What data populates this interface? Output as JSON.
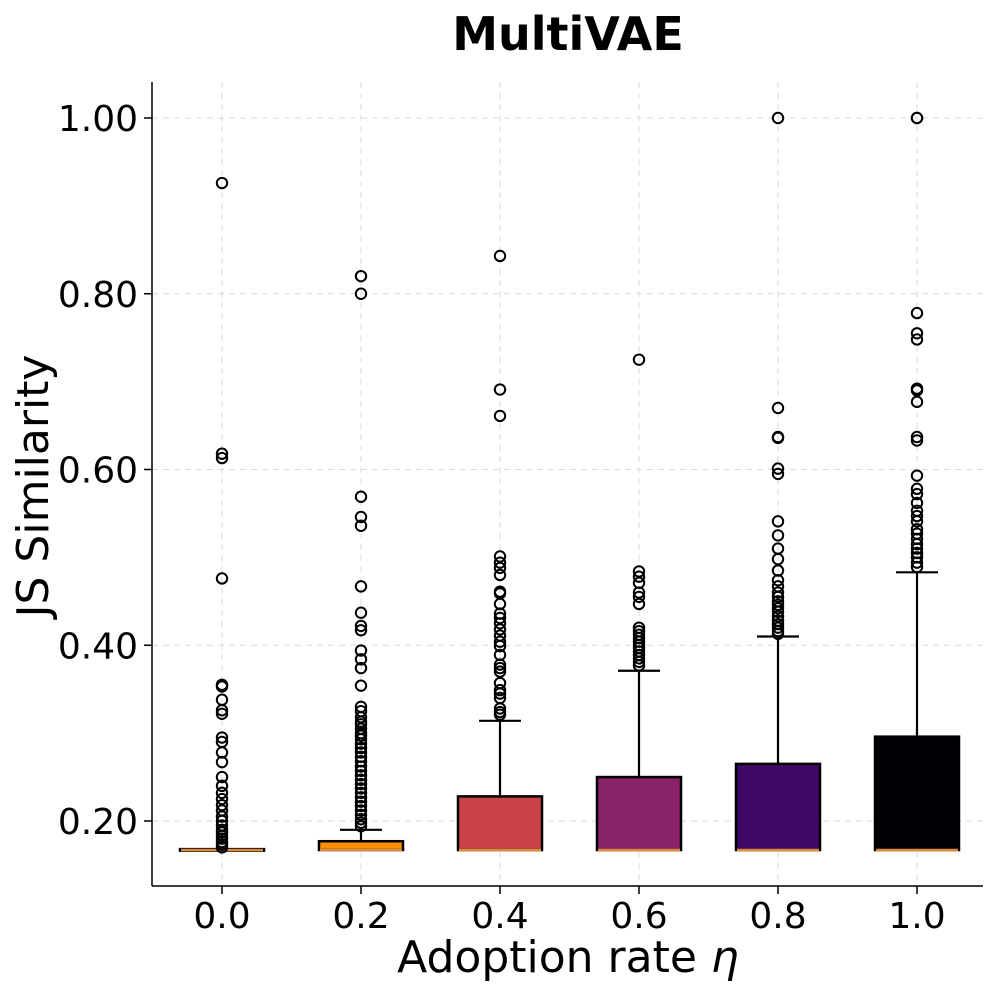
{
  "chart_data": {
    "type": "box",
    "title": "MultiVAE",
    "xlabel": "Adoption rate",
    "xlabel_symbol": "η",
    "ylabel": "JS Similarity",
    "ylim": [
      0.13,
      1.04
    ],
    "yticks": [
      "0.20",
      "0.40",
      "0.60",
      "0.80",
      "1.00"
    ],
    "ytick_values": [
      0.2,
      0.4,
      0.6,
      0.8,
      1.0
    ],
    "grid": true,
    "categories": [
      "0.0",
      "0.2",
      "0.4",
      "0.6",
      "0.8",
      "1.0"
    ],
    "boxes": [
      {
        "label": "0.0",
        "color": "#000004",
        "q1": 0.167,
        "median": 0.167,
        "q3": 0.168,
        "whisker_low": 0.167,
        "whisker_high": 0.168,
        "fliers": [
          0.926,
          0.618,
          0.613,
          0.476,
          0.355,
          0.353,
          0.338,
          0.326,
          0.322,
          0.295,
          0.29,
          0.278,
          0.267,
          0.25,
          0.24,
          0.232,
          0.225,
          0.218,
          0.212,
          0.205,
          0.2,
          0.195,
          0.19,
          0.187,
          0.183,
          0.18,
          0.176,
          0.173,
          0.17
        ]
      },
      {
        "label": "0.2",
        "color": "#f98e09",
        "q1": 0.167,
        "median": 0.167,
        "q3": 0.177,
        "whisker_low": 0.167,
        "whisker_high": 0.19,
        "fliers": [
          0.82,
          0.8,
          0.569,
          0.546,
          0.536,
          0.467,
          0.437,
          0.422,
          0.417,
          0.394,
          0.384,
          0.374,
          0.354,
          0.33,
          0.325,
          0.318,
          0.313,
          0.31,
          0.305,
          0.3,
          0.297,
          0.293,
          0.288,
          0.283,
          0.278,
          0.273,
          0.268,
          0.262,
          0.257,
          0.252,
          0.247,
          0.242,
          0.237,
          0.232,
          0.227,
          0.222,
          0.217,
          0.212,
          0.207,
          0.202,
          0.198,
          0.194
        ]
      },
      {
        "label": "0.4",
        "color": "#cb4149",
        "q1": 0.167,
        "median": 0.167,
        "q3": 0.228,
        "whisker_low": 0.167,
        "whisker_high": 0.314,
        "fliers": [
          0.843,
          0.691,
          0.661,
          0.501,
          0.494,
          0.488,
          0.48,
          0.461,
          0.459,
          0.447,
          0.436,
          0.431,
          0.425,
          0.418,
          0.411,
          0.404,
          0.399,
          0.389,
          0.378,
          0.374,
          0.37,
          0.357,
          0.349,
          0.345,
          0.34,
          0.328,
          0.324,
          0.321
        ]
      },
      {
        "label": "0.6",
        "color": "#8a226a",
        "q1": 0.167,
        "median": 0.167,
        "q3": 0.25,
        "whisker_low": 0.167,
        "whisker_high": 0.371,
        "fliers": [
          0.725,
          0.484,
          0.478,
          0.471,
          0.46,
          0.455,
          0.447,
          0.42,
          0.416,
          0.412,
          0.408,
          0.404,
          0.4,
          0.397,
          0.393,
          0.389,
          0.385,
          0.381,
          0.377
        ]
      },
      {
        "label": "0.8",
        "color": "#3e0966",
        "q1": 0.167,
        "median": 0.167,
        "q3": 0.265,
        "whisker_low": 0.167,
        "whisker_high": 0.41,
        "fliers": [
          1.0,
          0.67,
          0.637,
          0.636,
          0.601,
          0.595,
          0.541,
          0.525,
          0.51,
          0.498,
          0.485,
          0.474,
          0.467,
          0.46,
          0.455,
          0.45,
          0.446,
          0.442,
          0.438,
          0.433,
          0.428,
          0.424,
          0.42,
          0.416,
          0.413
        ]
      },
      {
        "label": "1.0",
        "color": "#000004",
        "q1": 0.167,
        "median": 0.167,
        "q3": 0.296,
        "whisker_low": 0.167,
        "whisker_high": 0.483,
        "fliers": [
          1.0,
          1.0,
          0.778,
          0.755,
          0.748,
          0.692,
          0.69,
          0.677,
          0.637,
          0.633,
          0.593,
          0.578,
          0.572,
          0.562,
          0.553,
          0.547,
          0.541,
          0.532,
          0.527,
          0.521,
          0.515,
          0.51,
          0.505,
          0.5,
          0.494,
          0.489
        ]
      }
    ]
  }
}
